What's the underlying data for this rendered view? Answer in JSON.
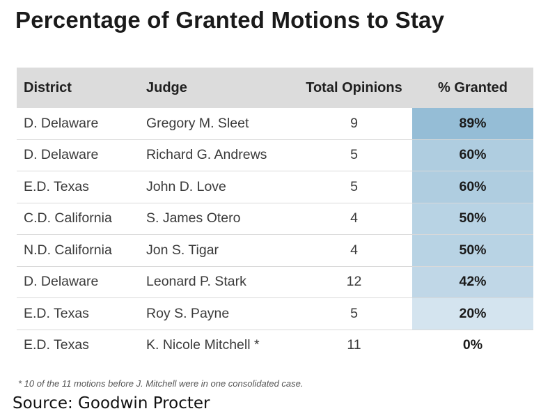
{
  "title": "Percentage of Granted Motions to Stay",
  "chart_data": {
    "type": "table",
    "title": "Percentage of Granted Motions to Stay",
    "columns": [
      "District",
      "Judge",
      "Total Opinions",
      "% Granted"
    ],
    "rows": [
      {
        "district": "D. Delaware",
        "judge": "Gregory M. Sleet",
        "total": "9",
        "pct": "89%",
        "value": 89
      },
      {
        "district": "D. Delaware",
        "judge": "Richard G. Andrews",
        "total": "5",
        "pct": "60%",
        "value": 60
      },
      {
        "district": "E.D. Texas",
        "judge": "John D. Love",
        "total": "5",
        "pct": "60%",
        "value": 60
      },
      {
        "district": "C.D. California",
        "judge": "S. James Otero",
        "total": "4",
        "pct": "50%",
        "value": 50
      },
      {
        "district": "N.D. California",
        "judge": "Jon S. Tigar",
        "total": "4",
        "pct": "50%",
        "value": 50
      },
      {
        "district": "D. Delaware",
        "judge": "Leonard P. Stark",
        "total": "12",
        "pct": "42%",
        "value": 42
      },
      {
        "district": "E.D. Texas",
        "judge": "Roy S. Payne",
        "total": "5",
        "pct": "20%",
        "value": 20
      },
      {
        "district": "E.D. Texas",
        "judge": "K. Nicole Mitchell *",
        "total": "11",
        "pct": "0%",
        "value": 0
      }
    ],
    "heat_colors": {
      "low": "#e6eff6",
      "high": "#95bdd6",
      "zero": "#ffffff"
    }
  },
  "footnote": "*  10 of the 11 motions before J. Mitchell were in one consolidated case.",
  "source": "Source: Goodwin Procter"
}
